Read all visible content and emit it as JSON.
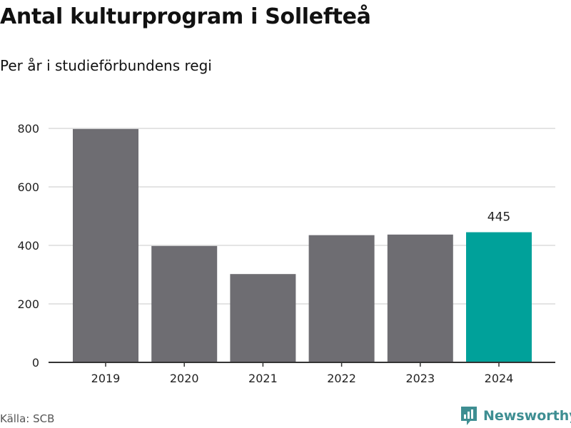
{
  "title": "Antal kulturprogram i Sollefteå",
  "subtitle": "Per år i studieförbundens regi",
  "source": "Källa: SCB",
  "brand": {
    "name": "Newsworthy",
    "icon": "newsworthy-logo-icon"
  },
  "colors": {
    "bar": "#6e6d72",
    "highlight": "#00a19a",
    "grid": "#dcdcdc",
    "axis": "#333333",
    "brand": "#3e8e92"
  },
  "chart_data": {
    "type": "bar",
    "categories": [
      "2019",
      "2020",
      "2021",
      "2022",
      "2023",
      "2024"
    ],
    "values": [
      798,
      398,
      302,
      435,
      437,
      445
    ],
    "highlight_index": 5,
    "data_labels": {
      "5": "445"
    },
    "ylim": [
      0,
      800
    ],
    "yticks": [
      0,
      200,
      400,
      600,
      800
    ],
    "grid": true,
    "legend": "none"
  }
}
